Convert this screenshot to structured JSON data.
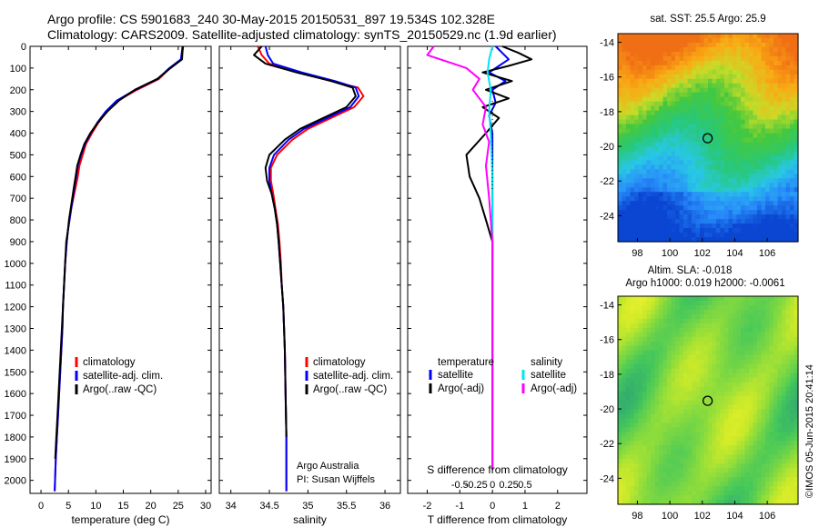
{
  "header": {
    "line1": "Argo profile: CS 5901683_240 30-May-2015 20150531_897 19.534S 102.328E",
    "line2": "Climatology: CARS2009. Satellite-adjusted climatology: synTS_20150529.nc (1.9d earlier)"
  },
  "colors": {
    "climatology": "#ff0000",
    "satellite": "#0000ff",
    "argo": "#000000",
    "satellite_s": "#00e5ee",
    "argo_s": "#ff00ff"
  },
  "watermark": "©IMOS 05-Jun-2015 20:41:14",
  "chart_data": [
    {
      "type": "line",
      "xlabel": "temperature (deg C)",
      "ylabel": "",
      "xlim": [
        -2,
        31
      ],
      "ylim": [
        2060,
        0
      ],
      "xticks": [
        0,
        5,
        10,
        15,
        20,
        25,
        30
      ],
      "yticks": [
        0,
        100,
        200,
        300,
        400,
        500,
        600,
        700,
        800,
        900,
        1000,
        1100,
        1200,
        1300,
        1400,
        1500,
        1600,
        1700,
        1800,
        1900,
        2000
      ],
      "legend": {
        "position": "lower-center",
        "entries": [
          "climatology",
          "satellite-adj. clim.",
          "Argo(..raw -QC)"
        ]
      },
      "series": [
        {
          "name": "climatology",
          "color": "#ff0000",
          "x": [
            25.9,
            25.8,
            25.6,
            23.5,
            21.5,
            17.5,
            14.0,
            12.0,
            10.5,
            9.3,
            8.2,
            7.6,
            7.0,
            6.7,
            6.3,
            5.9,
            5.5,
            5.2,
            4.9,
            4.7,
            4.4,
            4.2,
            4.0,
            3.9,
            3.7,
            3.5,
            3.3,
            3.1,
            2.9,
            2.7,
            2.5
          ],
          "y": [
            0,
            20,
            60,
            100,
            150,
            200,
            250,
            300,
            350,
            400,
            450,
            500,
            550,
            600,
            650,
            700,
            750,
            800,
            850,
            900,
            1000,
            1100,
            1200,
            1300,
            1400,
            1500,
            1600,
            1700,
            1800,
            1900,
            2050
          ]
        },
        {
          "name": "satellite-adj. clim.",
          "color": "#0000ff",
          "x": [
            25.8,
            25.7,
            25.5,
            23.4,
            21.3,
            17.2,
            13.8,
            11.8,
            10.3,
            9.1,
            8.0,
            7.3,
            6.7,
            6.4,
            6.1,
            5.8,
            5.5,
            5.2,
            4.9,
            4.7,
            4.4,
            4.2,
            4.0,
            3.9,
            3.7,
            3.5,
            3.3,
            3.1,
            2.9,
            2.7,
            2.5
          ],
          "y": [
            0,
            20,
            60,
            100,
            150,
            200,
            250,
            300,
            350,
            400,
            450,
            500,
            550,
            600,
            650,
            700,
            750,
            800,
            850,
            900,
            1000,
            1100,
            1200,
            1300,
            1400,
            1500,
            1600,
            1700,
            1800,
            1900,
            2050
          ]
        },
        {
          "name": "Argo(..raw -QC)",
          "color": "#000000",
          "x": [
            25.9,
            25.8,
            25.7,
            23.6,
            21.2,
            17.1,
            14.2,
            12.1,
            10.4,
            9.0,
            7.9,
            7.2,
            6.6,
            6.3,
            6.0,
            5.7,
            5.4,
            5.1,
            4.9,
            4.6,
            4.4,
            4.2,
            4.0,
            3.8,
            3.6,
            3.4,
            3.2,
            3.0,
            2.8,
            2.6
          ],
          "y": [
            0,
            20,
            60,
            100,
            150,
            200,
            250,
            300,
            350,
            400,
            450,
            500,
            550,
            600,
            650,
            700,
            750,
            800,
            850,
            900,
            1000,
            1100,
            1200,
            1300,
            1400,
            1500,
            1600,
            1700,
            1800,
            1900
          ]
        }
      ]
    },
    {
      "type": "line",
      "xlabel": "salinity",
      "ylabel": "",
      "xlim": [
        33.85,
        36.2
      ],
      "ylim": [
        2060,
        0
      ],
      "xticks": [
        34,
        34.5,
        35,
        35.5,
        36
      ],
      "annotation": [
        "Argo Australia",
        "PI: Susan Wijffels"
      ],
      "legend": {
        "position": "lower-center",
        "entries": [
          "climatology",
          "satellite-adj. clim.",
          "Argo(..raw -QC)"
        ]
      },
      "series": [
        {
          "name": "climatology",
          "color": "#ff0000",
          "x": [
            34.35,
            34.4,
            34.5,
            34.9,
            35.3,
            35.65,
            35.72,
            35.6,
            35.3,
            35.0,
            34.8,
            34.6,
            34.52,
            34.52,
            34.55,
            34.58,
            34.61,
            34.63,
            34.65,
            34.66,
            34.68,
            34.7,
            34.71,
            34.72,
            34.72
          ],
          "y": [
            0,
            40,
            80,
            120,
            160,
            190,
            230,
            280,
            330,
            380,
            430,
            500,
            560,
            620,
            680,
            750,
            820,
            900,
            1000,
            1100,
            1200,
            1400,
            1600,
            1800,
            2050
          ]
        },
        {
          "name": "satellite-adj. clim.",
          "color": "#0000ff",
          "x": [
            34.45,
            34.48,
            34.55,
            34.92,
            35.35,
            35.62,
            35.66,
            35.55,
            35.25,
            34.95,
            34.75,
            34.56,
            34.5,
            34.5,
            34.53,
            34.57,
            34.6,
            34.62,
            34.64,
            34.66,
            34.68,
            34.7,
            34.71,
            34.72,
            34.72
          ],
          "y": [
            0,
            40,
            80,
            120,
            160,
            190,
            230,
            280,
            330,
            380,
            430,
            500,
            560,
            620,
            680,
            750,
            820,
            900,
            1000,
            1100,
            1200,
            1400,
            1600,
            1800,
            2050
          ]
        },
        {
          "name": "Argo(..raw -QC)",
          "color": "#000000",
          "x": [
            34.4,
            34.3,
            34.45,
            34.85,
            35.3,
            35.58,
            35.62,
            35.5,
            35.2,
            34.9,
            34.7,
            34.5,
            34.45,
            34.47,
            34.53,
            34.57,
            34.6,
            34.62,
            34.64,
            34.66,
            34.68,
            34.7,
            34.71,
            34.72
          ],
          "y": [
            0,
            40,
            80,
            120,
            160,
            190,
            230,
            280,
            330,
            380,
            430,
            500,
            560,
            620,
            680,
            750,
            820,
            900,
            1000,
            1100,
            1200,
            1400,
            1600,
            1800
          ]
        }
      ]
    },
    {
      "type": "line",
      "xlabel": "T difference from climatology",
      "xlabel_top": "S difference from climatology",
      "xlim": [
        -2.6,
        2.9
      ],
      "ylim": [
        2060,
        0
      ],
      "xticks": [
        -2,
        -1,
        0,
        1,
        2
      ],
      "xticks_s_values": [
        -0.5,
        -0.25,
        0,
        0.25,
        0.5
      ],
      "xticks_s_labels": [
        "-0.5",
        "-0.25",
        "0",
        "0.25",
        "0.5"
      ],
      "legend": {
        "position": "lower-center",
        "headers": [
          "temperature",
          "salinity"
        ],
        "entries": [
          "satellite",
          "Argo(-adj)",
          "satellite",
          "Argo(-adj)"
        ]
      },
      "series": [
        {
          "name": "temperature satellite",
          "color": "#0000ff",
          "x": [
            0.1,
            0.3,
            0.5,
            0.2,
            -0.1,
            0.4,
            0.0,
            0.1,
            -0.1,
            0.0,
            0.0,
            0.0,
            0.0,
            0.0,
            0.0,
            0.0
          ],
          "y": [
            0,
            30,
            60,
            90,
            120,
            160,
            200,
            260,
            320,
            400,
            500,
            700,
            900,
            1200,
            1600,
            1950
          ]
        },
        {
          "name": "temperature Argo(-adj)",
          "color": "#000000",
          "x": [
            0.3,
            0.8,
            1.2,
            0.5,
            -0.3,
            0.6,
            -0.2,
            0.5,
            -0.3,
            0.2,
            -0.2,
            -0.8,
            -0.7,
            -0.4,
            -0.2,
            0.0,
            0.0,
            0.0,
            0.0
          ],
          "y": [
            0,
            30,
            60,
            90,
            120,
            160,
            200,
            240,
            280,
            330,
            400,
            500,
            600,
            700,
            800,
            900,
            1200,
            1600,
            1950
          ]
        },
        {
          "name": "salinity satellite",
          "color": "#00e5ee",
          "x": [
            0.0,
            -0.1,
            -0.15,
            -0.05,
            -0.1,
            -0.05,
            0.0,
            0.0,
            0.0,
            0.0
          ],
          "y": [
            0,
            60,
            120,
            200,
            300,
            400,
            600,
            800,
            1200,
            1950
          ]
        },
        {
          "name": "salinity Argo(-adj)",
          "color": "#ff00ff",
          "x": [
            -1.8,
            -2.0,
            -1.2,
            -0.8,
            -0.4,
            -0.6,
            -0.2,
            -0.3,
            -0.1,
            -0.2,
            -0.1,
            0.0,
            0.0,
            0.0
          ],
          "y": [
            0,
            40,
            80,
            100,
            150,
            200,
            280,
            360,
            440,
            550,
            700,
            900,
            1200,
            1950
          ]
        }
      ]
    },
    {
      "type": "heatmap",
      "title": "sat. SST: 25.5  Argo: 25.9",
      "xlim": [
        96.8,
        107.9
      ],
      "ylim": [
        -25.5,
        -13.5
      ],
      "xticks": [
        98,
        100,
        102,
        104,
        106
      ],
      "yticks": [
        -14,
        -16,
        -18,
        -20,
        -22,
        -24
      ],
      "marker": {
        "lon": 102.328,
        "lat": -19.534
      }
    },
    {
      "type": "heatmap",
      "title": "Altim. SLA: -0.018",
      "subtitle": "Argo h1000: 0.019  h2000: -0.0061",
      "xlim": [
        96.8,
        107.9
      ],
      "ylim": [
        -25.5,
        -13.5
      ],
      "xticks": [
        98,
        100,
        102,
        104,
        106
      ],
      "yticks": [
        -14,
        -16,
        -18,
        -20,
        -22,
        -24
      ],
      "marker": {
        "lon": 102.328,
        "lat": -19.534
      }
    }
  ]
}
